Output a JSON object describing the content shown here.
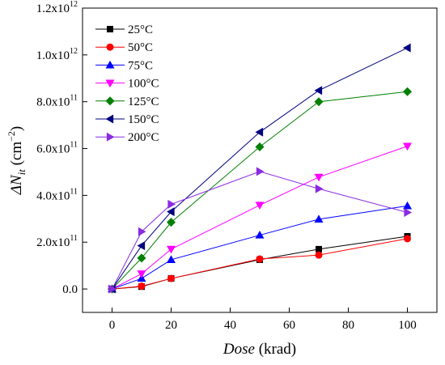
{
  "chart_data": {
    "type": "line",
    "xlabel_italic": "Dose",
    "xlabel_unit": " (krad)",
    "ylabel": {
      "delta": "ΔN",
      "subscript": "it",
      "unit_prefix": " (cm",
      "unit_exp": "−2",
      "unit_suffix": ")"
    },
    "xlim": [
      -10,
      110
    ],
    "ylim": [
      -100000000000.0,
      1200000000000.0
    ],
    "x_ticks": [
      0,
      20,
      40,
      60,
      80,
      100
    ],
    "x_tick_labels": [
      "0",
      "20",
      "40",
      "60",
      "80",
      "100"
    ],
    "y_ticks": [
      {
        "value": 0,
        "mantissa": "0.0",
        "exp": ""
      },
      {
        "value": 200000000000.0,
        "mantissa": "2.0x10",
        "exp": "11"
      },
      {
        "value": 400000000000.0,
        "mantissa": "4.0x10",
        "exp": "11"
      },
      {
        "value": 600000000000.0,
        "mantissa": "6.0x10",
        "exp": "11"
      },
      {
        "value": 800000000000.0,
        "mantissa": "8.0x10",
        "exp": "11"
      },
      {
        "value": 1000000000000.0,
        "mantissa": "1.0x10",
        "exp": "12"
      },
      {
        "value": 1200000000000.0,
        "mantissa": "1.2x10",
        "exp": "12"
      }
    ],
    "legend_position": "top-left",
    "grid": false,
    "x": [
      0,
      10,
      20,
      50,
      70,
      100
    ],
    "series": [
      {
        "name": "25°C",
        "color": "#000000",
        "marker": "square",
        "values": [
          0,
          10000000000.0,
          45000000000.0,
          125000000000.0,
          170000000000.0,
          225000000000.0
        ]
      },
      {
        "name": "50°C",
        "color": "#ff0000",
        "marker": "circle",
        "values": [
          0,
          12000000000.0,
          45000000000.0,
          128000000000.0,
          145000000000.0,
          215000000000.0
        ]
      },
      {
        "name": "75°C",
        "color": "#0000ff",
        "marker": "triangle-up",
        "values": [
          0,
          45000000000.0,
          125000000000.0,
          230000000000.0,
          298000000000.0,
          355000000000.0
        ]
      },
      {
        "name": "100°C",
        "color": "#ff00ff",
        "marker": "triangle-down",
        "values": [
          0,
          65000000000.0,
          170000000000.0,
          358000000000.0,
          478000000000.0,
          610000000000.0
        ]
      },
      {
        "name": "125°C",
        "color": "#008000",
        "marker": "diamond",
        "values": [
          0,
          132000000000.0,
          285000000000.0,
          607000000000.0,
          800000000000.0,
          843000000000.0
        ]
      },
      {
        "name": "150°C",
        "color": "#000080",
        "marker": "triangle-left",
        "values": [
          0,
          185000000000.0,
          330000000000.0,
          670000000000.0,
          848000000000.0,
          1030000000000.0
        ]
      },
      {
        "name": "200°C",
        "color": "#8a2be2",
        "marker": "triangle-right",
        "values": [
          0,
          245000000000.0,
          362000000000.0,
          502000000000.0,
          428000000000.0,
          327000000000.0
        ]
      }
    ]
  }
}
